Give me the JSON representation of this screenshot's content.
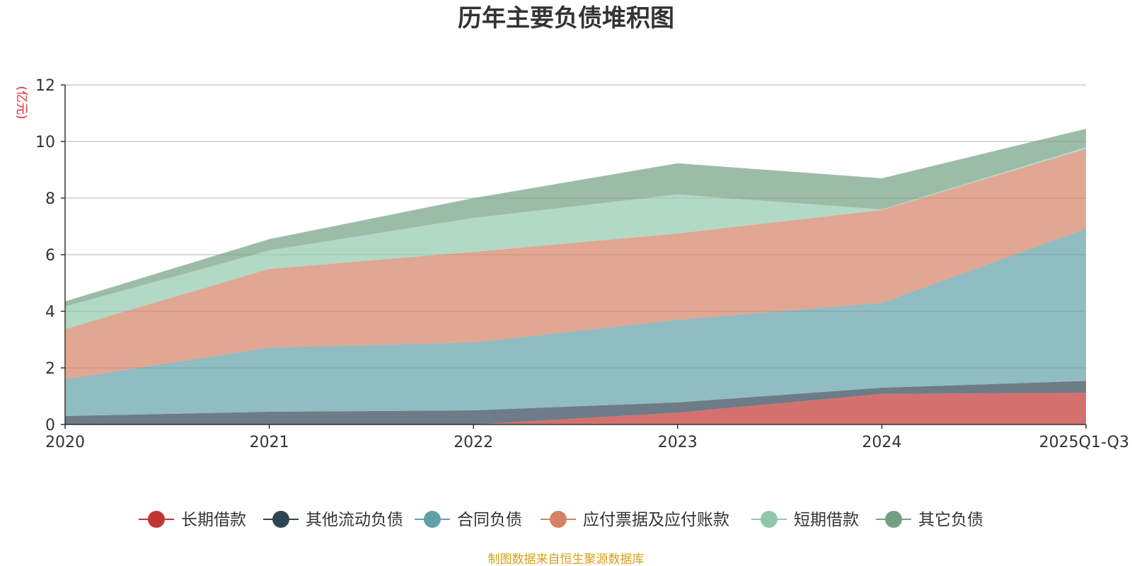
{
  "chart_data": {
    "type": "area",
    "stacked": true,
    "title": "历年主要负债堆积图",
    "ylabel": "(亿元)",
    "ylim": [
      0,
      12
    ],
    "yticks": [
      0,
      2,
      4,
      6,
      8,
      10,
      12
    ],
    "grid": true,
    "legend_position": "bottom",
    "categories": [
      "2020",
      "2021",
      "2022",
      "2023",
      "2024",
      "2025Q1-Q3"
    ],
    "series": [
      {
        "name": "长期借款",
        "color": "#c23531",
        "values": [
          0,
          0,
          0,
          0.42,
          1.08,
          1.12
        ]
      },
      {
        "name": "其他流动负债",
        "color": "#2f4554",
        "values": [
          0.3,
          0.45,
          0.5,
          0.36,
          0.22,
          0.42
        ]
      },
      {
        "name": "合同负债",
        "color": "#61a0a8",
        "values": [
          1.3,
          2.27,
          2.4,
          2.92,
          3.0,
          5.38
        ]
      },
      {
        "name": "应付票据及应付账款",
        "color": "#d48265",
        "values": [
          1.77,
          2.78,
          3.2,
          3.05,
          3.28,
          2.82
        ]
      },
      {
        "name": "短期借款",
        "color": "#91c7ae",
        "values": [
          0.8,
          0.65,
          1.2,
          1.38,
          0.02,
          0.06
        ]
      },
      {
        "name": "其它负债",
        "color": "#749f83",
        "values": [
          0.18,
          0.4,
          0.7,
          1.1,
          1.1,
          0.65
        ]
      }
    ],
    "source": "制图数据来自恒生聚源数据库"
  }
}
